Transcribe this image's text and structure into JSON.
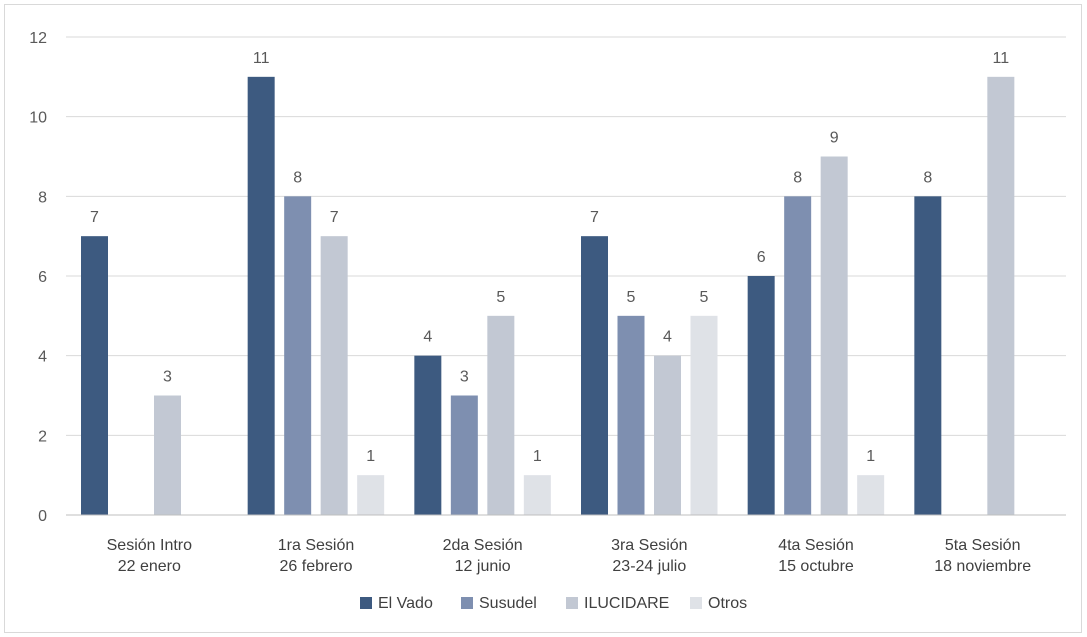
{
  "chart_data": {
    "type": "bar",
    "categories": [
      [
        "Sesión Intro",
        "22 enero"
      ],
      [
        "1ra Sesión",
        "26 febrero"
      ],
      [
        "2da Sesión",
        "12 junio"
      ],
      [
        "3ra Sesión",
        "23-24 julio"
      ],
      [
        "4ta Sesión",
        "15 octubre"
      ],
      [
        "5ta Sesión",
        "18 noviembre"
      ]
    ],
    "series": [
      {
        "name": "El Vado",
        "color": "#3d5a80",
        "values": [
          7,
          11,
          4,
          7,
          6,
          8
        ]
      },
      {
        "name": "Susudel",
        "color": "#7e8fb0",
        "values": [
          null,
          8,
          3,
          5,
          8,
          null
        ]
      },
      {
        "name": "ILUCIDARE",
        "color": "#c2c8d3",
        "values": [
          3,
          7,
          5,
          4,
          9,
          11
        ]
      },
      {
        "name": "Otros",
        "color": "#dfe2e7",
        "values": [
          null,
          1,
          1,
          5,
          1,
          null
        ]
      }
    ],
    "ylim": [
      0,
      12
    ],
    "yticks": [
      0,
      2,
      4,
      6,
      8,
      10,
      12
    ],
    "grid": true,
    "legend_position": "bottom",
    "title": "",
    "xlabel": "",
    "ylabel": ""
  }
}
